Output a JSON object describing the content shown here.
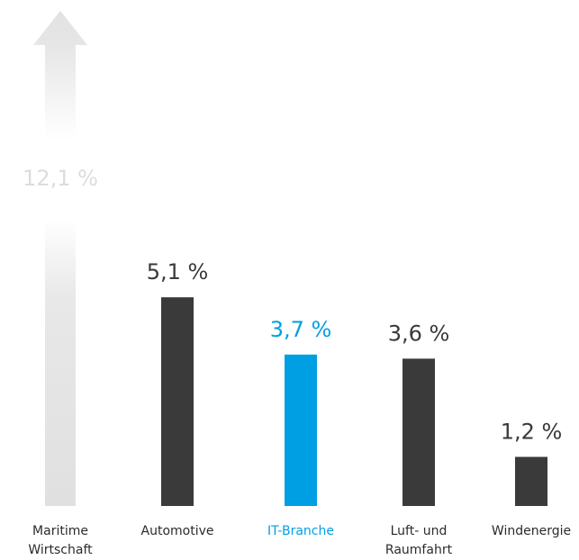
{
  "chart_data": {
    "type": "bar",
    "categories": [
      [
        "Maritime",
        "Wirtschaft"
      ],
      [
        "Automotive"
      ],
      [
        "IT-Branche"
      ],
      [
        "Luft- und",
        "Raumfahrt"
      ],
      [
        "Windenergie"
      ]
    ],
    "values": [
      12.1,
      5.1,
      3.7,
      3.6,
      1.2
    ],
    "value_labels": [
      "12,1 %",
      "5,1 %",
      "3,7 %",
      "3,6 %",
      "1,2 %"
    ],
    "ylim": [
      0,
      12.1
    ],
    "grid": false,
    "bar_styles": [
      "arrow-gradient",
      "solid",
      "highlight",
      "solid",
      "solid"
    ],
    "colors": {
      "default": "#3a3a3a",
      "highlight": "#009fe3",
      "arrow": "#e0e0e0",
      "arrow_label": "#dcdcdc",
      "label": "#2b2b2b"
    }
  }
}
